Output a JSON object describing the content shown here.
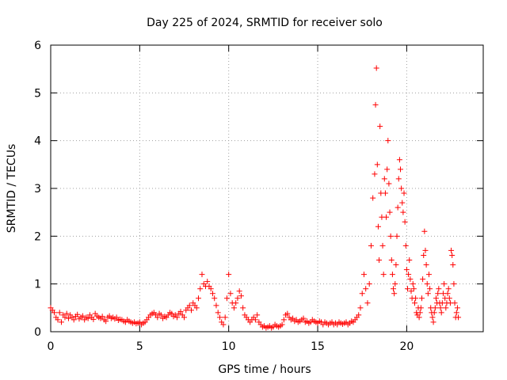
{
  "chart_data": {
    "type": "scatter",
    "title": "Day 225 of 2024, SRMTID for receiver solo",
    "xlabel": "GPS time / hours",
    "ylabel": "SRMTID / TECUs",
    "xlim": [
      0,
      24.3
    ],
    "ylim": [
      0,
      6
    ],
    "x_ticks": [
      0,
      5,
      10,
      15,
      20
    ],
    "y_ticks": [
      0,
      1,
      2,
      3,
      4,
      5,
      6
    ],
    "grid": true,
    "marker": "+",
    "color": "#ff0000",
    "series": [
      {
        "name": "SRMTID",
        "points": [
          [
            0.0,
            0.5
          ],
          [
            0.1,
            0.45
          ],
          [
            0.2,
            0.4
          ],
          [
            0.3,
            0.3
          ],
          [
            0.4,
            0.25
          ],
          [
            0.5,
            0.4
          ],
          [
            0.6,
            0.2
          ],
          [
            0.7,
            0.35
          ],
          [
            0.8,
            0.3
          ],
          [
            0.9,
            0.38
          ],
          [
            1.0,
            0.28
          ],
          [
            1.1,
            0.35
          ],
          [
            1.2,
            0.3
          ],
          [
            1.3,
            0.25
          ],
          [
            1.4,
            0.32
          ],
          [
            1.5,
            0.36
          ],
          [
            1.6,
            0.27
          ],
          [
            1.7,
            0.3
          ],
          [
            1.8,
            0.33
          ],
          [
            1.9,
            0.25
          ],
          [
            2.0,
            0.3
          ],
          [
            2.1,
            0.28
          ],
          [
            2.2,
            0.35
          ],
          [
            2.3,
            0.3
          ],
          [
            2.4,
            0.26
          ],
          [
            2.5,
            0.38
          ],
          [
            2.6,
            0.33
          ],
          [
            2.7,
            0.3
          ],
          [
            2.8,
            0.28
          ],
          [
            2.9,
            0.32
          ],
          [
            3.0,
            0.25
          ],
          [
            3.1,
            0.22
          ],
          [
            3.2,
            0.3
          ],
          [
            3.3,
            0.33
          ],
          [
            3.4,
            0.28
          ],
          [
            3.5,
            0.3
          ],
          [
            3.6,
            0.27
          ],
          [
            3.7,
            0.3
          ],
          [
            3.8,
            0.24
          ],
          [
            3.9,
            0.26
          ],
          [
            4.0,
            0.25
          ],
          [
            4.1,
            0.22
          ],
          [
            4.2,
            0.2
          ],
          [
            4.3,
            0.25
          ],
          [
            4.4,
            0.22
          ],
          [
            4.5,
            0.2
          ],
          [
            4.6,
            0.18
          ],
          [
            4.7,
            0.2
          ],
          [
            4.8,
            0.17
          ],
          [
            4.9,
            0.18
          ],
          [
            5.0,
            0.2
          ],
          [
            5.1,
            0.15
          ],
          [
            5.2,
            0.18
          ],
          [
            5.3,
            0.2
          ],
          [
            5.4,
            0.25
          ],
          [
            5.5,
            0.3
          ],
          [
            5.6,
            0.35
          ],
          [
            5.7,
            0.38
          ],
          [
            5.8,
            0.4
          ],
          [
            5.9,
            0.35
          ],
          [
            6.0,
            0.3
          ],
          [
            6.1,
            0.38
          ],
          [
            6.2,
            0.35
          ],
          [
            6.3,
            0.28
          ],
          [
            6.4,
            0.32
          ],
          [
            6.5,
            0.3
          ],
          [
            6.6,
            0.35
          ],
          [
            6.7,
            0.4
          ],
          [
            6.8,
            0.38
          ],
          [
            6.9,
            0.32
          ],
          [
            7.0,
            0.35
          ],
          [
            7.1,
            0.3
          ],
          [
            7.2,
            0.38
          ],
          [
            7.3,
            0.42
          ],
          [
            7.4,
            0.35
          ],
          [
            7.5,
            0.3
          ],
          [
            7.6,
            0.45
          ],
          [
            7.7,
            0.5
          ],
          [
            7.8,
            0.55
          ],
          [
            7.9,
            0.45
          ],
          [
            8.0,
            0.6
          ],
          [
            8.1,
            0.55
          ],
          [
            8.2,
            0.5
          ],
          [
            8.3,
            0.7
          ],
          [
            8.4,
            0.9
          ],
          [
            8.5,
            1.2
          ],
          [
            8.6,
            1.0
          ],
          [
            8.7,
            0.95
          ],
          [
            8.8,
            1.05
          ],
          [
            8.9,
            0.95
          ],
          [
            9.0,
            0.9
          ],
          [
            9.1,
            0.8
          ],
          [
            9.2,
            0.7
          ],
          [
            9.3,
            0.55
          ],
          [
            9.4,
            0.4
          ],
          [
            9.5,
            0.3
          ],
          [
            9.6,
            0.2
          ],
          [
            9.7,
            0.15
          ],
          [
            9.8,
            0.3
          ],
          [
            9.9,
            0.7
          ],
          [
            10.0,
            1.2
          ],
          [
            10.1,
            0.8
          ],
          [
            10.2,
            0.6
          ],
          [
            10.3,
            0.5
          ],
          [
            10.4,
            0.6
          ],
          [
            10.5,
            0.7
          ],
          [
            10.6,
            0.85
          ],
          [
            10.7,
            0.75
          ],
          [
            10.8,
            0.5
          ],
          [
            10.9,
            0.35
          ],
          [
            11.0,
            0.3
          ],
          [
            11.1,
            0.25
          ],
          [
            11.2,
            0.2
          ],
          [
            11.3,
            0.25
          ],
          [
            11.4,
            0.3
          ],
          [
            11.5,
            0.25
          ],
          [
            11.6,
            0.35
          ],
          [
            11.7,
            0.2
          ],
          [
            11.8,
            0.15
          ],
          [
            11.9,
            0.1
          ],
          [
            12.0,
            0.12
          ],
          [
            12.1,
            0.08
          ],
          [
            12.2,
            0.1
          ],
          [
            12.3,
            0.12
          ],
          [
            12.4,
            0.08
          ],
          [
            12.5,
            0.1
          ],
          [
            12.6,
            0.15
          ],
          [
            12.7,
            0.12
          ],
          [
            12.8,
            0.1
          ],
          [
            12.9,
            0.12
          ],
          [
            13.0,
            0.15
          ],
          [
            13.1,
            0.25
          ],
          [
            13.2,
            0.35
          ],
          [
            13.3,
            0.38
          ],
          [
            13.4,
            0.3
          ],
          [
            13.5,
            0.25
          ],
          [
            13.6,
            0.28
          ],
          [
            13.7,
            0.22
          ],
          [
            13.8,
            0.25
          ],
          [
            13.9,
            0.2
          ],
          [
            14.0,
            0.22
          ],
          [
            14.1,
            0.25
          ],
          [
            14.2,
            0.28
          ],
          [
            14.3,
            0.2
          ],
          [
            14.4,
            0.22
          ],
          [
            14.5,
            0.18
          ],
          [
            14.6,
            0.2
          ],
          [
            14.7,
            0.25
          ],
          [
            14.8,
            0.22
          ],
          [
            14.9,
            0.2
          ],
          [
            15.0,
            0.18
          ],
          [
            15.1,
            0.22
          ],
          [
            15.2,
            0.2
          ],
          [
            15.3,
            0.15
          ],
          [
            15.4,
            0.2
          ],
          [
            15.5,
            0.18
          ],
          [
            15.6,
            0.15
          ],
          [
            15.7,
            0.18
          ],
          [
            15.8,
            0.2
          ],
          [
            15.9,
            0.15
          ],
          [
            16.0,
            0.18
          ],
          [
            16.1,
            0.15
          ],
          [
            16.2,
            0.2
          ],
          [
            16.3,
            0.18
          ],
          [
            16.4,
            0.16
          ],
          [
            16.5,
            0.18
          ],
          [
            16.6,
            0.2
          ],
          [
            16.7,
            0.15
          ],
          [
            16.8,
            0.18
          ],
          [
            16.9,
            0.22
          ],
          [
            17.0,
            0.2
          ],
          [
            17.1,
            0.25
          ],
          [
            17.2,
            0.3
          ],
          [
            17.3,
            0.35
          ],
          [
            17.4,
            0.5
          ],
          [
            17.5,
            0.8
          ],
          [
            17.6,
            1.2
          ],
          [
            17.7,
            0.9
          ],
          [
            17.8,
            0.6
          ],
          [
            17.9,
            1.0
          ],
          [
            18.0,
            1.8
          ],
          [
            18.1,
            2.8
          ],
          [
            18.2,
            3.3
          ],
          [
            18.25,
            4.75
          ],
          [
            18.3,
            5.52
          ],
          [
            18.35,
            3.5
          ],
          [
            18.4,
            2.2
          ],
          [
            18.45,
            1.5
          ],
          [
            18.5,
            4.3
          ],
          [
            18.55,
            2.9
          ],
          [
            18.6,
            2.4
          ],
          [
            18.65,
            1.8
          ],
          [
            18.7,
            1.2
          ],
          [
            18.75,
            3.2
          ],
          [
            18.8,
            2.9
          ],
          [
            18.85,
            2.4
          ],
          [
            18.9,
            3.4
          ],
          [
            18.95,
            4.0
          ],
          [
            19.0,
            3.1
          ],
          [
            19.05,
            2.5
          ],
          [
            19.1,
            2.0
          ],
          [
            19.15,
            1.5
          ],
          [
            19.2,
            1.2
          ],
          [
            19.25,
            0.9
          ],
          [
            19.3,
            0.8
          ],
          [
            19.35,
            1.0
          ],
          [
            19.4,
            1.4
          ],
          [
            19.45,
            2.0
          ],
          [
            19.5,
            2.6
          ],
          [
            19.55,
            3.2
          ],
          [
            19.6,
            3.6
          ],
          [
            19.65,
            3.4
          ],
          [
            19.7,
            3.0
          ],
          [
            19.75,
            2.7
          ],
          [
            19.8,
            2.5
          ],
          [
            19.85,
            2.9
          ],
          [
            19.9,
            2.3
          ],
          [
            19.95,
            1.8
          ],
          [
            20.0,
            1.3
          ],
          [
            20.05,
            0.9
          ],
          [
            20.1,
            1.2
          ],
          [
            20.15,
            1.5
          ],
          [
            20.2,
            1.1
          ],
          [
            20.25,
            0.85
          ],
          [
            20.3,
            0.7
          ],
          [
            20.35,
            1.0
          ],
          [
            20.4,
            0.9
          ],
          [
            20.45,
            0.6
          ],
          [
            20.5,
            0.7
          ],
          [
            20.55,
            0.4
          ],
          [
            20.6,
            0.35
          ],
          [
            20.65,
            0.5
          ],
          [
            20.7,
            0.3
          ],
          [
            20.75,
            0.4
          ],
          [
            20.8,
            0.5
          ],
          [
            20.85,
            0.7
          ],
          [
            20.9,
            1.1
          ],
          [
            20.95,
            1.6
          ],
          [
            21.0,
            2.1
          ],
          [
            21.05,
            1.7
          ],
          [
            21.1,
            1.4
          ],
          [
            21.15,
            1.0
          ],
          [
            21.2,
            0.8
          ],
          [
            21.25,
            1.2
          ],
          [
            21.3,
            0.9
          ],
          [
            21.35,
            0.5
          ],
          [
            21.4,
            0.4
          ],
          [
            21.45,
            0.3
          ],
          [
            21.5,
            0.2
          ],
          [
            21.55,
            0.4
          ],
          [
            21.6,
            0.5
          ],
          [
            21.65,
            0.7
          ],
          [
            21.7,
            0.6
          ],
          [
            21.75,
            0.8
          ],
          [
            21.8,
            0.9
          ],
          [
            21.85,
            0.6
          ],
          [
            21.9,
            0.5
          ],
          [
            21.95,
            0.4
          ],
          [
            22.0,
            0.6
          ],
          [
            22.05,
            0.8
          ],
          [
            22.1,
            1.0
          ],
          [
            22.15,
            0.7
          ],
          [
            22.2,
            0.5
          ],
          [
            22.25,
            0.6
          ],
          [
            22.3,
            0.8
          ],
          [
            22.35,
            0.9
          ],
          [
            22.4,
            0.7
          ],
          [
            22.45,
            0.6
          ],
          [
            22.5,
            1.7
          ],
          [
            22.55,
            1.6
          ],
          [
            22.6,
            1.4
          ],
          [
            22.65,
            1.0
          ],
          [
            22.7,
            0.6
          ],
          [
            22.75,
            0.3
          ],
          [
            22.8,
            0.4
          ],
          [
            22.85,
            0.5
          ],
          [
            22.9,
            0.3
          ]
        ]
      }
    ]
  }
}
